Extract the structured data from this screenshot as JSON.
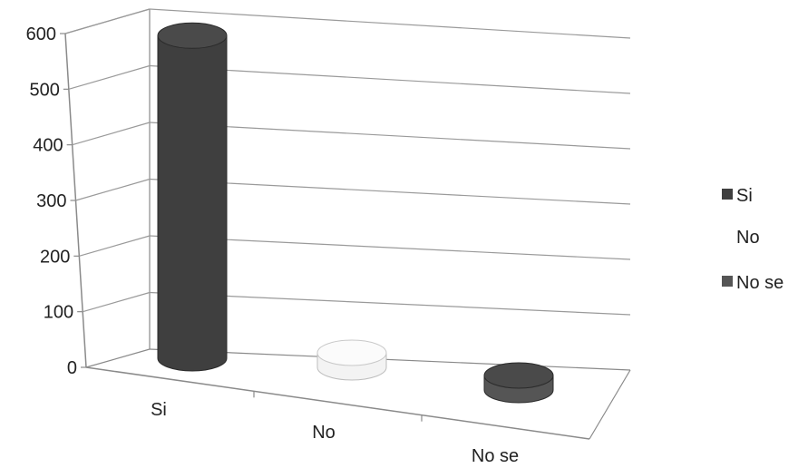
{
  "chart_data": {
    "type": "bar",
    "style": "3d-cylinder",
    "categories": [
      "Si",
      "No",
      "No se"
    ],
    "series": [
      {
        "name": "Si",
        "values": [
          580,
          null,
          null
        ],
        "color": "#3f3f3f"
      },
      {
        "name": "No",
        "values": [
          null,
          20,
          null
        ],
        "color": "#f3f3f3"
      },
      {
        "name": "No se",
        "values": [
          null,
          null,
          10
        ],
        "color": "#555555"
      }
    ],
    "ylim": [
      0,
      600
    ],
    "yticks": [
      0,
      100,
      200,
      300,
      400,
      500,
      600
    ],
    "grid": true,
    "legend": "right",
    "title": "",
    "xlabel": "",
    "ylabel": ""
  }
}
